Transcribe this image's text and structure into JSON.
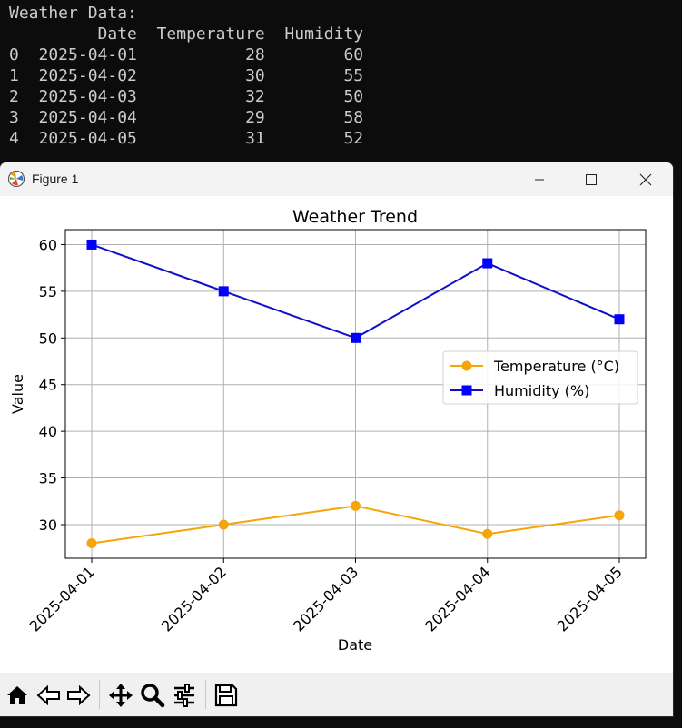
{
  "terminal": {
    "lines": [
      "Weather Data:",
      "         Date  Temperature  Humidity",
      "0  2025-04-01           28        60",
      "1  2025-04-02           30        55",
      "2  2025-04-03           32        50",
      "3  2025-04-04           29        58",
      "4  2025-04-05           31        52"
    ]
  },
  "window": {
    "title": "Figure 1",
    "icons": [
      "matplotlib-logo-icon",
      "minimize-icon",
      "maximize-icon",
      "close-icon"
    ]
  },
  "toolbar": {
    "tools": [
      "home-icon",
      "back-arrow-icon",
      "forward-arrow-icon",
      "pan-icon",
      "zoom-icon",
      "configure-subplots-icon",
      "save-icon"
    ]
  },
  "chart_data": {
    "type": "line",
    "title": "Weather Trend",
    "xlabel": "Date",
    "ylabel": "Value",
    "categories": [
      "2025-04-01",
      "2025-04-02",
      "2025-04-03",
      "2025-04-04",
      "2025-04-05"
    ],
    "series": [
      {
        "name": "Temperature (°C)",
        "values": [
          28,
          30,
          32,
          29,
          31
        ],
        "color": "#f5a50a",
        "marker": "circle"
      },
      {
        "name": "Humidity (%)",
        "values": [
          60,
          55,
          50,
          58,
          52
        ],
        "color": "#0000ff",
        "line_color": "#1010c8",
        "marker": "square"
      }
    ],
    "ylim": [
      26.4,
      61.6
    ],
    "yticks": [
      30,
      35,
      40,
      45,
      50,
      55,
      60
    ],
    "grid": true,
    "legend": "center-right"
  }
}
